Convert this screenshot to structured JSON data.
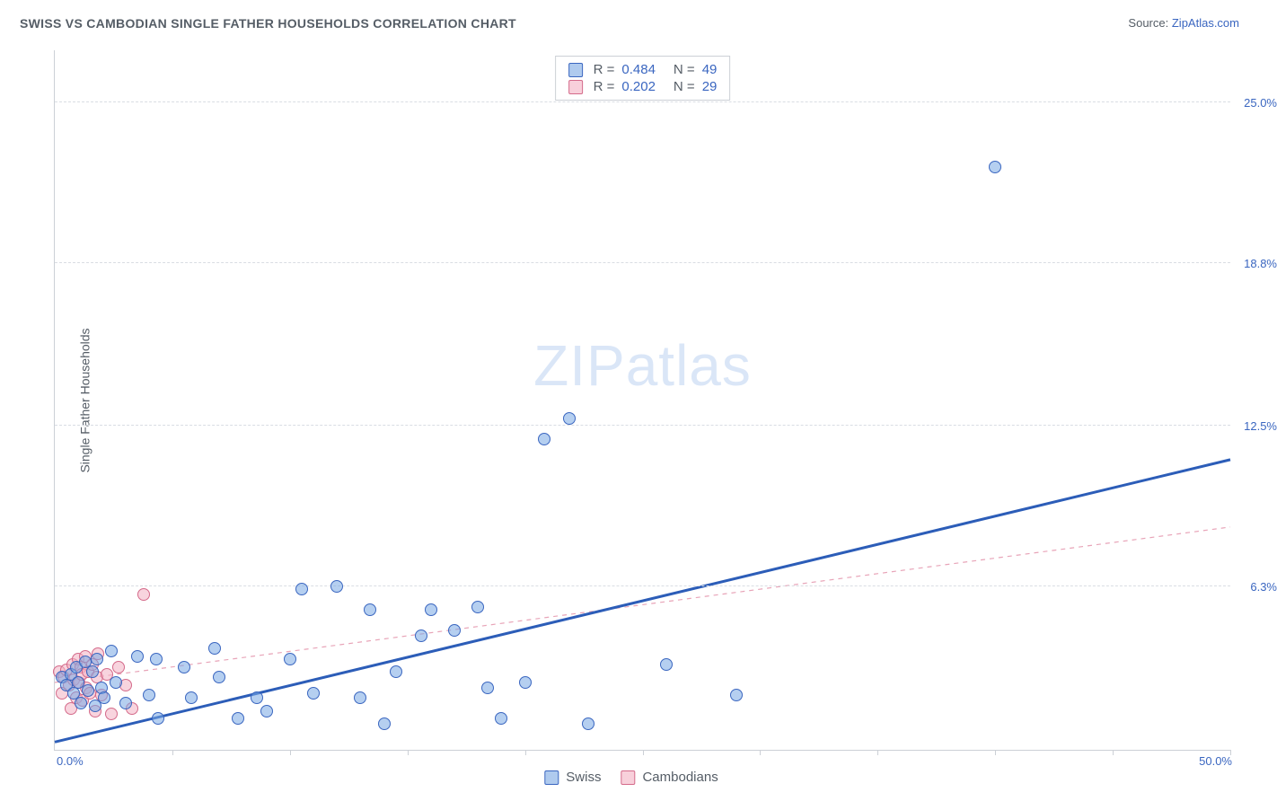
{
  "title": "SWISS VS CAMBODIAN SINGLE FATHER HOUSEHOLDS CORRELATION CHART",
  "source_label": "Source:",
  "source_name": "ZipAtlas.com",
  "ylabel": "Single Father Households",
  "watermark_zip": "ZIP",
  "watermark_atlas": "atlas",
  "chart": {
    "type": "scatter-with-regression",
    "xlim": [
      0,
      50
    ],
    "ylim": [
      0,
      27
    ],
    "x_min_label": "0.0%",
    "x_max_label": "50.0%",
    "y_ticks": [
      6.3,
      12.5,
      18.8,
      25.0
    ],
    "y_tick_labels": [
      "6.3%",
      "12.5%",
      "18.8%",
      "25.0%"
    ],
    "x_grid": [
      5,
      10,
      15,
      20,
      25,
      30,
      35,
      40,
      45,
      50
    ],
    "background_color": "#ffffff",
    "grid_color": "#d9dde3",
    "axis_color": "#ccd0d6",
    "tick_font_color": "#3a66c0",
    "label_font_color": "#555d66",
    "title_fontsize": 14,
    "tick_fontsize": 13,
    "marker_radius": 7,
    "series": {
      "swiss": {
        "label": "Swiss",
        "color_fill": "rgba(121,167,227,0.55)",
        "color_stroke": "#3a66c0",
        "R": "0.484",
        "N": "49",
        "regression": {
          "x1": 0,
          "y1": 0.3,
          "x2": 50,
          "y2": 11.2,
          "stroke": "#2c5db8",
          "width": 3,
          "dash": "none"
        },
        "points": [
          [
            0.3,
            2.8
          ],
          [
            0.5,
            2.5
          ],
          [
            0.7,
            2.9
          ],
          [
            0.8,
            2.2
          ],
          [
            0.9,
            3.2
          ],
          [
            1.0,
            2.6
          ],
          [
            1.1,
            1.8
          ],
          [
            1.3,
            3.4
          ],
          [
            1.4,
            2.3
          ],
          [
            1.6,
            3.0
          ],
          [
            1.7,
            1.7
          ],
          [
            1.8,
            3.5
          ],
          [
            2.0,
            2.4
          ],
          [
            2.1,
            2.0
          ],
          [
            2.4,
            3.8
          ],
          [
            2.6,
            2.6
          ],
          [
            3.0,
            1.8
          ],
          [
            3.5,
            3.6
          ],
          [
            4.0,
            2.1
          ],
          [
            4.3,
            3.5
          ],
          [
            4.4,
            1.2
          ],
          [
            5.5,
            3.2
          ],
          [
            5.8,
            2.0
          ],
          [
            6.8,
            3.9
          ],
          [
            7.0,
            2.8
          ],
          [
            7.8,
            1.2
          ],
          [
            8.6,
            2.0
          ],
          [
            9.0,
            1.5
          ],
          [
            10.0,
            3.5
          ],
          [
            10.5,
            6.2
          ],
          [
            11.0,
            2.2
          ],
          [
            12.0,
            6.3
          ],
          [
            13.0,
            2.0
          ],
          [
            13.4,
            5.4
          ],
          [
            14.0,
            1.0
          ],
          [
            14.5,
            3.0
          ],
          [
            15.6,
            4.4
          ],
          [
            16.0,
            5.4
          ],
          [
            17.0,
            4.6
          ],
          [
            18.0,
            5.5
          ],
          [
            18.4,
            2.4
          ],
          [
            19.0,
            1.2
          ],
          [
            20.0,
            2.6
          ],
          [
            20.8,
            12.0
          ],
          [
            21.9,
            12.8
          ],
          [
            22.7,
            1.0
          ],
          [
            26.0,
            3.3
          ],
          [
            29.0,
            2.1
          ],
          [
            40.0,
            22.5
          ]
        ]
      },
      "cambodians": {
        "label": "Cambodians",
        "color_fill": "rgba(243,177,195,0.55)",
        "color_stroke": "#d46a8a",
        "R": "0.202",
        "N": "29",
        "regression": {
          "x1": 0,
          "y1": 2.6,
          "x2": 50,
          "y2": 8.6,
          "stroke": "#e8a4b8",
          "width": 1.2,
          "dash": "5,5"
        },
        "points": [
          [
            0.2,
            3.0
          ],
          [
            0.3,
            2.2
          ],
          [
            0.4,
            2.8
          ],
          [
            0.5,
            3.1
          ],
          [
            0.6,
            2.5
          ],
          [
            0.7,
            1.6
          ],
          [
            0.75,
            3.3
          ],
          [
            0.8,
            2.7
          ],
          [
            0.9,
            2.0
          ],
          [
            1.0,
            3.5
          ],
          [
            1.05,
            2.6
          ],
          [
            1.1,
            3.2
          ],
          [
            1.15,
            2.9
          ],
          [
            1.2,
            1.9
          ],
          [
            1.3,
            3.6
          ],
          [
            1.35,
            2.4
          ],
          [
            1.4,
            3.0
          ],
          [
            1.5,
            2.2
          ],
          [
            1.6,
            3.3
          ],
          [
            1.7,
            1.5
          ],
          [
            1.8,
            2.8
          ],
          [
            1.85,
            3.7
          ],
          [
            2.0,
            2.1
          ],
          [
            2.2,
            2.9
          ],
          [
            2.4,
            1.4
          ],
          [
            2.7,
            3.2
          ],
          [
            3.0,
            2.5
          ],
          [
            3.3,
            1.6
          ],
          [
            3.8,
            6.0
          ]
        ]
      }
    }
  },
  "legend_top": {
    "R_label": "R =",
    "N_label": "N ="
  },
  "legend_bottom": {
    "swiss": "Swiss",
    "cambodians": "Cambodians"
  }
}
